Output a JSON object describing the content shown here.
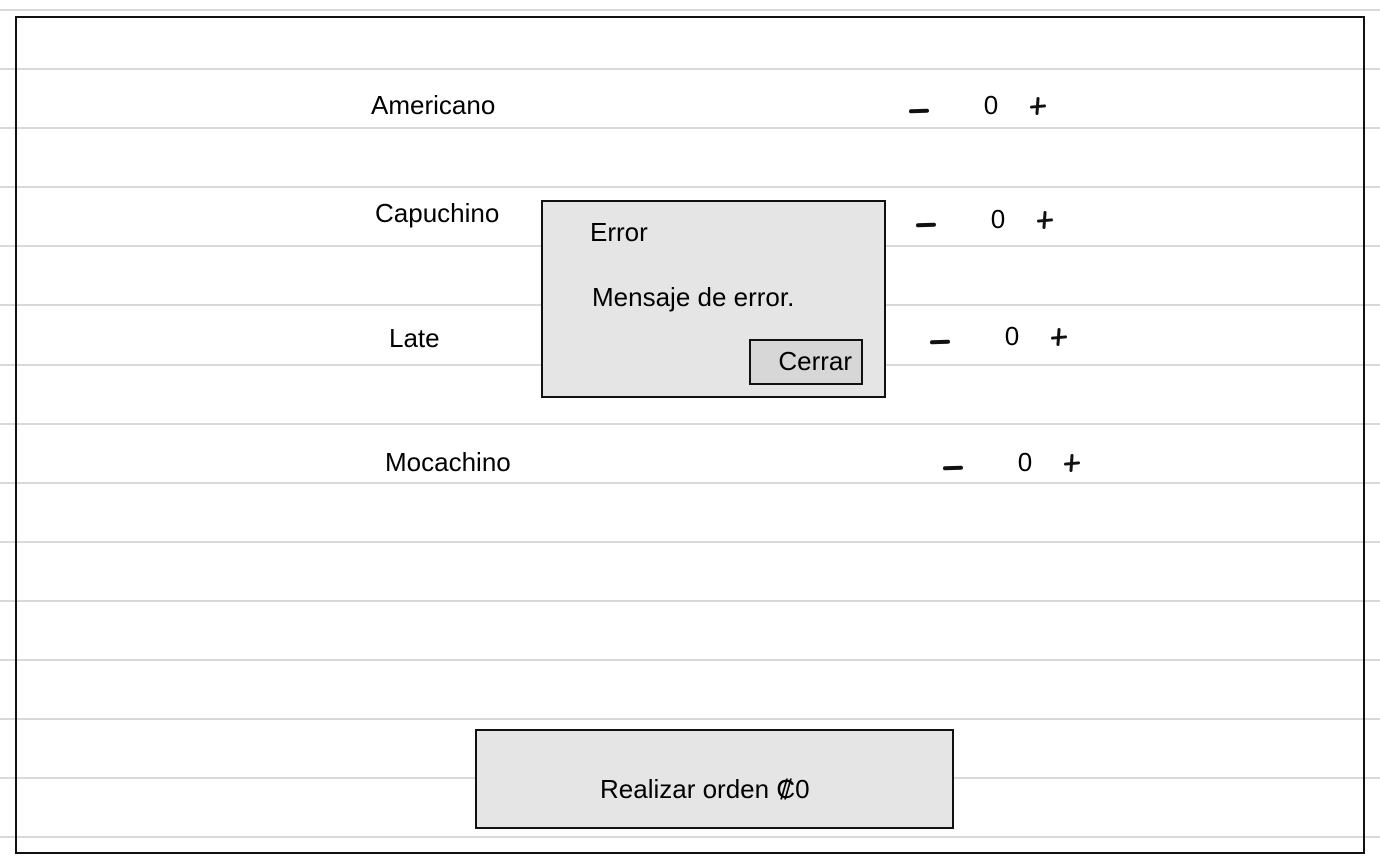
{
  "products": [
    {
      "name": "Americano",
      "quantity": "0"
    },
    {
      "name": "Capuchino",
      "quantity": "0"
    },
    {
      "name": "Late",
      "quantity": "0"
    },
    {
      "name": "Mocachino",
      "quantity": "0"
    }
  ],
  "dialog": {
    "title": "Error",
    "message": "Mensaje de error.",
    "close_label": "Cerrar"
  },
  "order_button": {
    "label": "Realizar orden",
    "currency_symbol": "₡",
    "total": "0"
  },
  "colors": {
    "page_background": "#ffffff",
    "line": "#d9d9d9",
    "panel_fill": "#e5e5e5",
    "border": "#111111"
  },
  "icons": {
    "decrease": "minus-icon",
    "increase": "plus-icon"
  }
}
